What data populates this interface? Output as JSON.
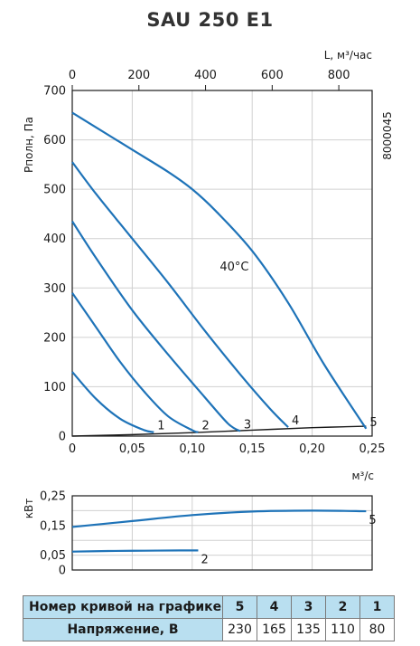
{
  "title": "SAU 250 E1",
  "chart_data": [
    {
      "type": "line",
      "name": "pressure",
      "xlim": [
        0,
        0.25
      ],
      "ylim": [
        0,
        700
      ],
      "x2lim": [
        0,
        900
      ],
      "xticks": [
        "0",
        "0,05",
        "0,10",
        "0,15",
        "0,20",
        "0,25"
      ],
      "yticks": [
        "0",
        "100",
        "200",
        "300",
        "400",
        "500",
        "600",
        "700"
      ],
      "x2ticks": [
        "0",
        "200",
        "400",
        "600",
        "800"
      ],
      "ylabel": "Pполн, Па",
      "x2label": "L, м³/час",
      "xlabel": "м³/с",
      "side_label": "8000045",
      "annotation": "40°C",
      "series": [
        {
          "name": "5",
          "x": [
            0,
            0.02,
            0.05,
            0.08,
            0.1,
            0.12,
            0.15,
            0.18,
            0.21,
            0.245
          ],
          "y": [
            655,
            625,
            580,
            535,
            500,
            455,
            375,
            270,
            145,
            15
          ]
        },
        {
          "name": "4",
          "x": [
            0,
            0.02,
            0.05,
            0.08,
            0.11,
            0.14,
            0.165,
            0.18
          ],
          "y": [
            555,
            490,
            400,
            310,
            215,
            125,
            55,
            18
          ]
        },
        {
          "name": "3",
          "x": [
            0,
            0.02,
            0.05,
            0.08,
            0.11,
            0.13,
            0.14
          ],
          "y": [
            435,
            360,
            255,
            165,
            80,
            25,
            10
          ]
        },
        {
          "name": "2",
          "x": [
            0,
            0.02,
            0.04,
            0.06,
            0.08,
            0.1,
            0.105
          ],
          "y": [
            290,
            220,
            150,
            90,
            40,
            12,
            8
          ]
        },
        {
          "name": "1",
          "x": [
            0,
            0.02,
            0.04,
            0.06,
            0.068
          ],
          "y": [
            130,
            75,
            35,
            12,
            8
          ]
        }
      ],
      "system_curve": {
        "x": [
          0,
          0.05,
          0.1,
          0.15,
          0.2,
          0.245
        ],
        "y": [
          0,
          3,
          7,
          12,
          17,
          20
        ]
      }
    },
    {
      "type": "line",
      "name": "power",
      "xlim": [
        0,
        0.25
      ],
      "ylim": [
        0,
        0.25
      ],
      "yticks": [
        "0",
        "0,05",
        "0,15",
        "0,25"
      ],
      "ytick_values": [
        0,
        0.05,
        0.15,
        0.25
      ],
      "ylabel": "кВт",
      "series": [
        {
          "name": "5",
          "x": [
            0,
            0.05,
            0.1,
            0.15,
            0.2,
            0.245
          ],
          "y": [
            0.145,
            0.165,
            0.185,
            0.197,
            0.2,
            0.198
          ]
        },
        {
          "name": "2",
          "x": [
            0,
            0.03,
            0.06,
            0.09,
            0.105
          ],
          "y": [
            0.062,
            0.064,
            0.065,
            0.066,
            0.066
          ]
        }
      ]
    }
  ],
  "table": {
    "row_header": "Номер кривой на графике",
    "row_voltage": "Напряжение, В",
    "curves": [
      "5",
      "4",
      "3",
      "2",
      "1"
    ],
    "voltages": [
      "230",
      "165",
      "135",
      "110",
      "80"
    ]
  },
  "colors": {
    "curve": "#1e73b8",
    "system": "#1a1a1a",
    "table_bg": "#b9dff0"
  }
}
